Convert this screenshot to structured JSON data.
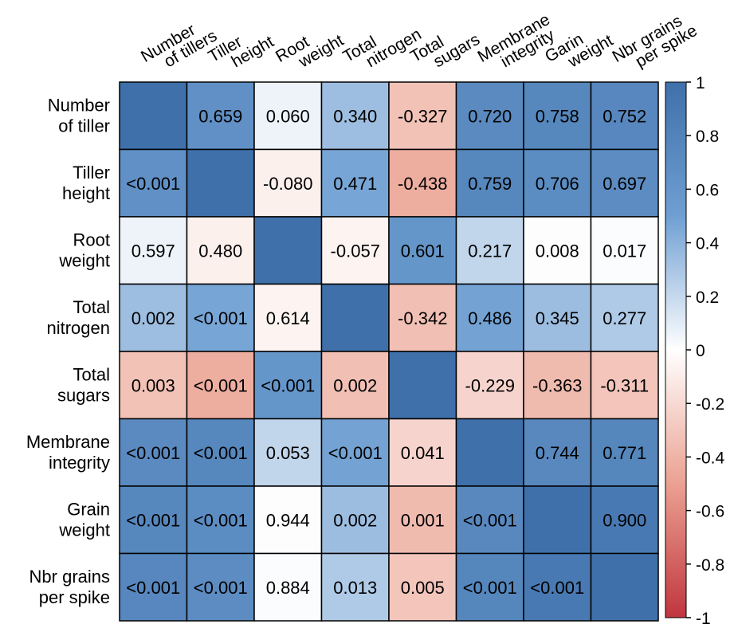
{
  "chart_data": {
    "type": "heatmap",
    "columns": [
      [
        "Number",
        "of tillers"
      ],
      [
        "Tiller",
        "height"
      ],
      [
        "Root",
        "weight"
      ],
      [
        "Total",
        "nitrogen"
      ],
      [
        "Total",
        "sugars"
      ],
      [
        "Membrane",
        "integrity"
      ],
      [
        "Garin",
        "weight"
      ],
      [
        "Nbr grains",
        "per spike"
      ]
    ],
    "rows": [
      [
        "Number",
        "of tiller"
      ],
      [
        "Tiller",
        "height"
      ],
      [
        "Root",
        "weight"
      ],
      [
        "Total",
        "nitrogen"
      ],
      [
        "Total",
        "sugars"
      ],
      [
        "Membrane",
        "integrity"
      ],
      [
        "Grain",
        "weight"
      ],
      [
        "Nbr grains",
        "per spike"
      ]
    ],
    "correlations": [
      [
        1,
        0.659,
        0.06,
        0.34,
        -0.327,
        0.72,
        0.758,
        0.752
      ],
      [
        0.659,
        1,
        -0.08,
        0.471,
        -0.438,
        0.759,
        0.706,
        0.697
      ],
      [
        0.06,
        -0.08,
        1,
        -0.057,
        0.601,
        0.217,
        0.008,
        0.017
      ],
      [
        0.34,
        0.471,
        -0.057,
        1,
        -0.342,
        0.486,
        0.345,
        0.277
      ],
      [
        -0.327,
        -0.438,
        0.601,
        -0.342,
        1,
        -0.229,
        -0.363,
        -0.311
      ],
      [
        0.72,
        0.759,
        0.217,
        0.486,
        -0.229,
        1,
        0.744,
        0.771
      ],
      [
        0.758,
        0.706,
        0.008,
        0.345,
        -0.363,
        0.744,
        1,
        0.9
      ],
      [
        0.752,
        0.697,
        0.017,
        0.277,
        -0.311,
        0.771,
        0.9,
        1
      ]
    ],
    "cell_text": [
      [
        "",
        "0.659",
        "0.060",
        "0.340",
        "-0.327",
        "0.720",
        "0.758",
        "0.752"
      ],
      [
        "<0.001",
        "",
        "-0.080",
        "0.471",
        "-0.438",
        "0.759",
        "0.706",
        "0.697"
      ],
      [
        "0.597",
        "0.480",
        "",
        "-0.057",
        "0.601",
        "0.217",
        "0.008",
        "0.017"
      ],
      [
        "0.002",
        "<0.001",
        "0.614",
        "",
        "-0.342",
        "0.486",
        "0.345",
        "0.277"
      ],
      [
        "0.003",
        "<0.001",
        "<0.001",
        "0.002",
        "",
        "-0.229",
        "-0.363",
        "-0.311"
      ],
      [
        "<0.001",
        "<0.001",
        "0.053",
        "<0.001",
        "0.041",
        "",
        "0.744",
        "0.771"
      ],
      [
        "<0.001",
        "<0.001",
        "0.944",
        "0.002",
        "0.001",
        "<0.001",
        "",
        "0.900"
      ],
      [
        "<0.001",
        "<0.001",
        "0.884",
        "0.013",
        "0.005",
        "<0.001",
        "<0.001",
        ""
      ]
    ],
    "colorbar": {
      "min": -1,
      "max": 1,
      "ticks": [
        "1",
        "0.8",
        "0.6",
        "0.4",
        "0.2",
        "0",
        "-0.2",
        "-0.4",
        "-0.6",
        "-0.8",
        "-1"
      ],
      "low_color": "#C0363E",
      "mid_color": "#FFFFFF",
      "high_color": "#3F70AA"
    }
  }
}
